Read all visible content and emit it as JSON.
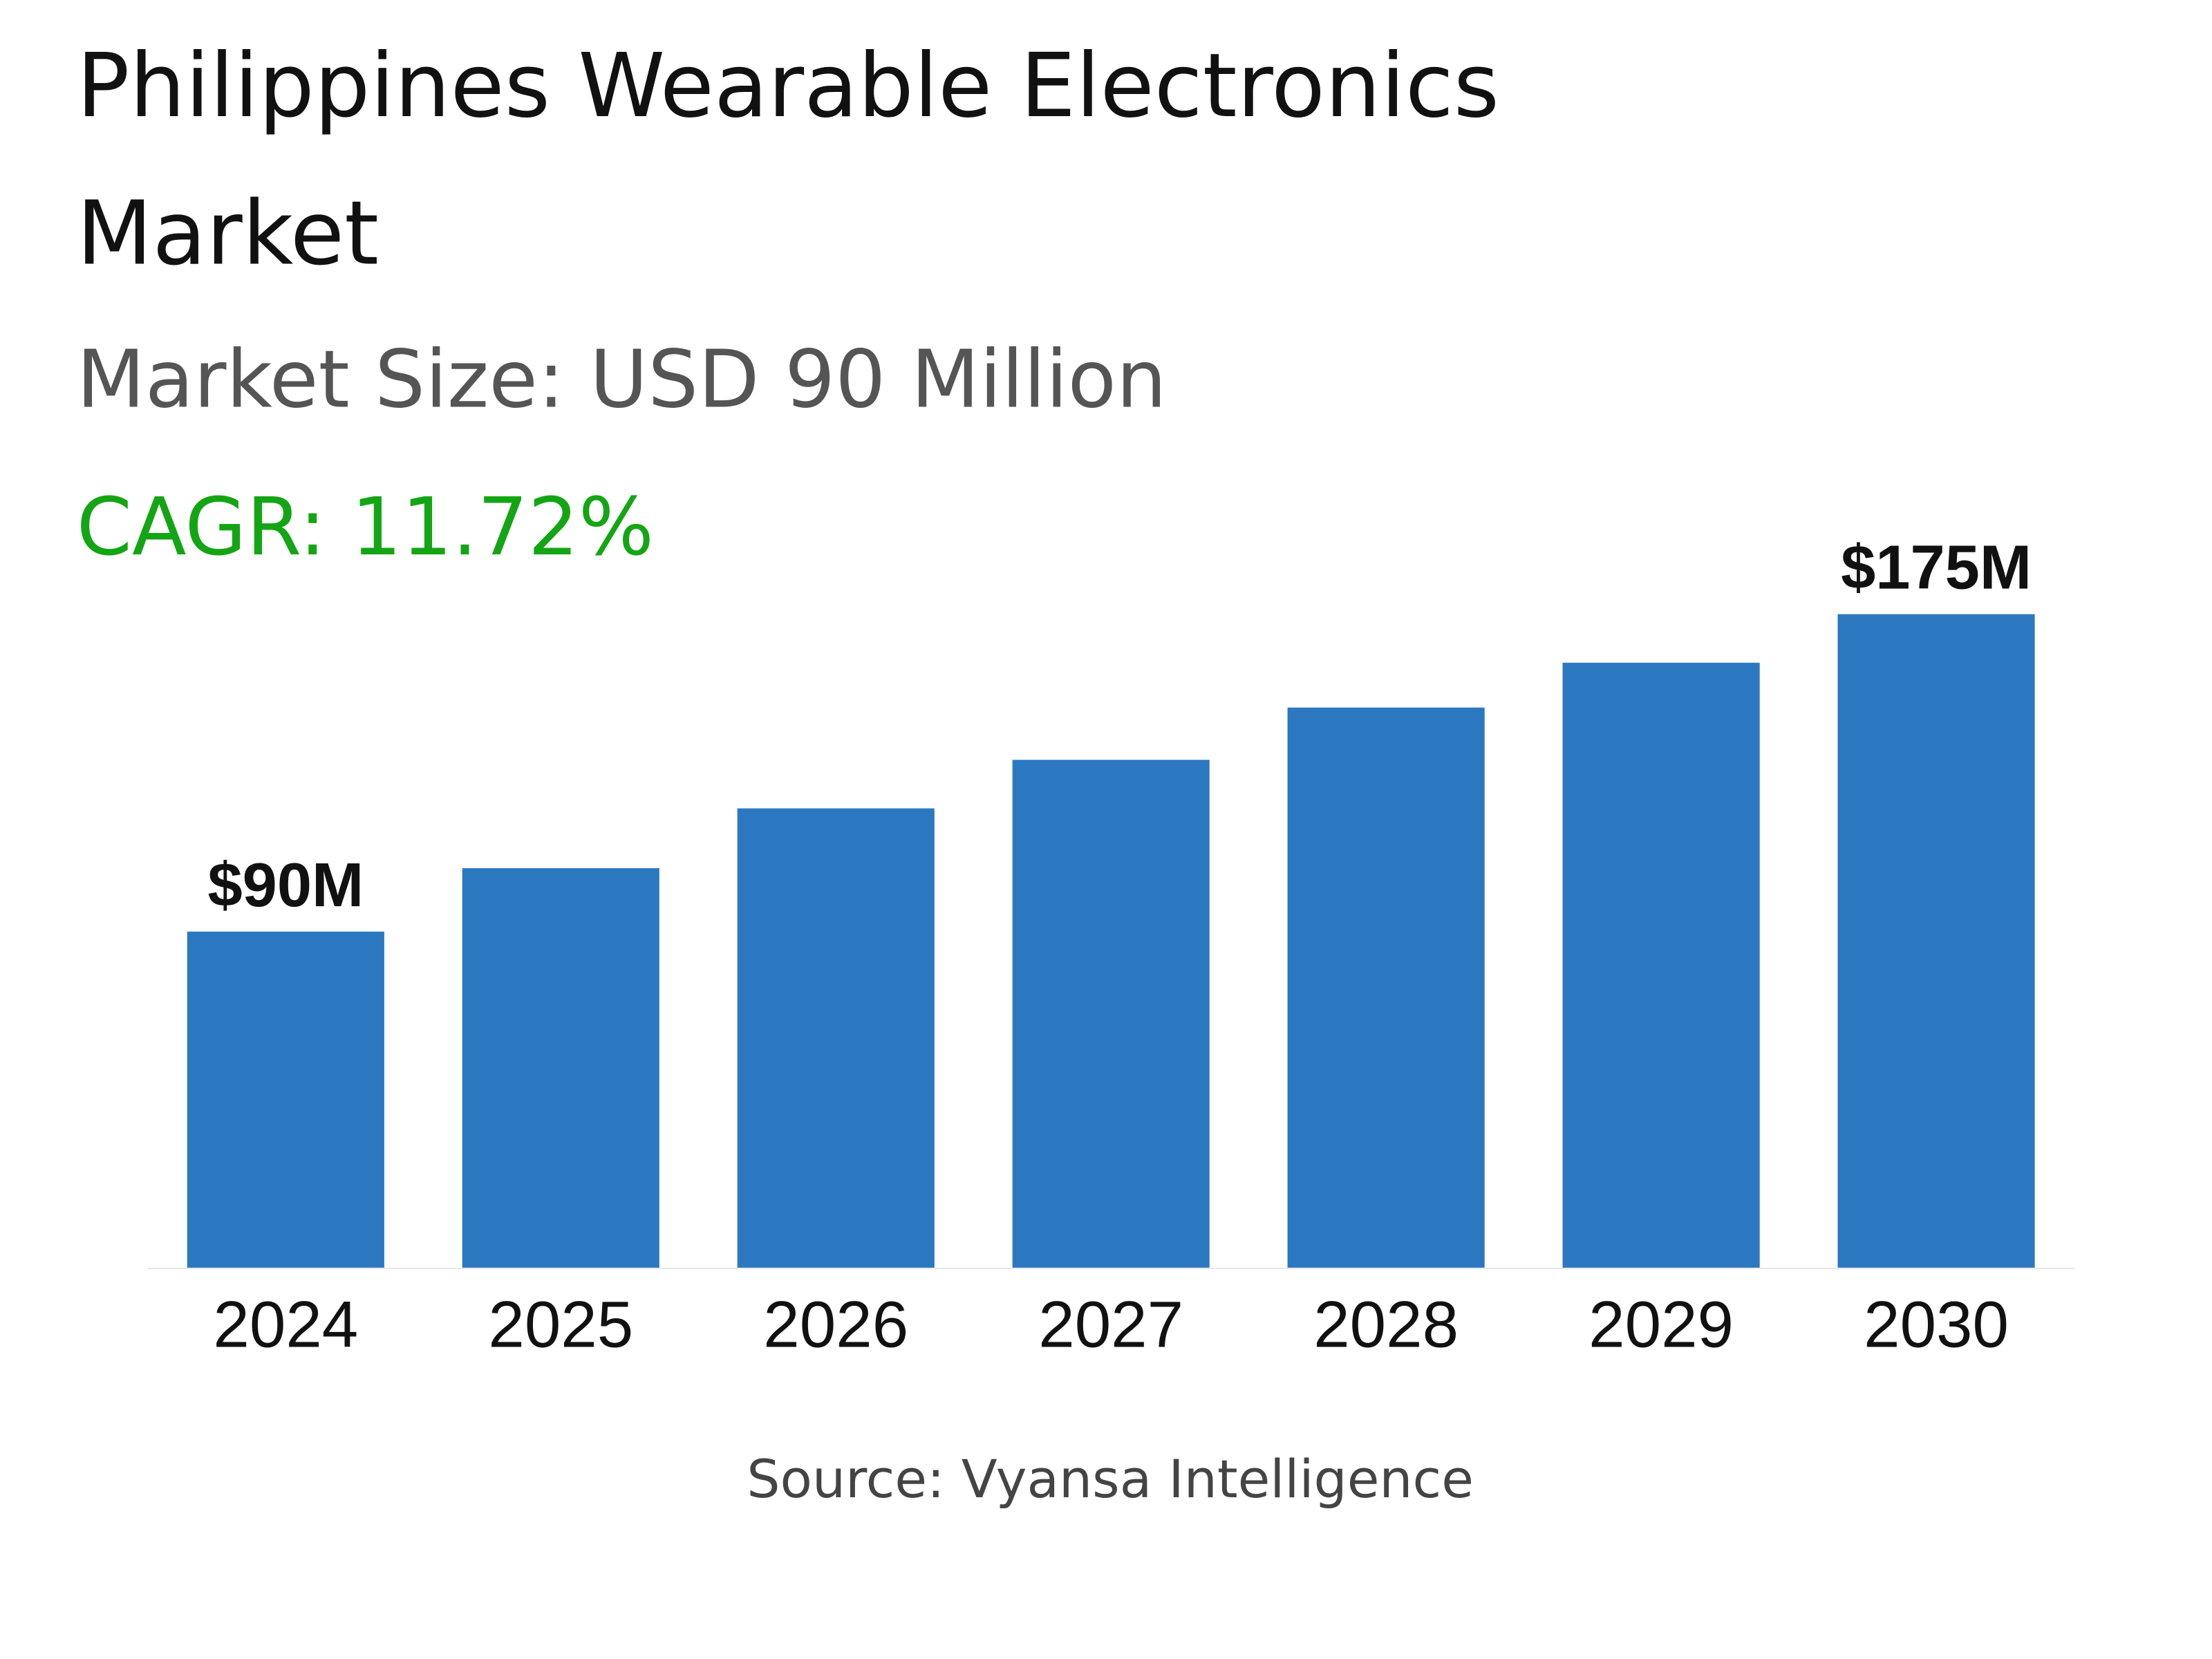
{
  "title_line1": "Philippines Wearable Electronics",
  "title_line2": "Market",
  "market_size": "Market Size: USD 90 Million",
  "cagr": "CAGR: 11.72%",
  "source": "Source: Vyansa Intelligence",
  "colors": {
    "bar": "#2b78c0",
    "cagr": "#14a514",
    "subtitle": "#555555"
  },
  "chart_data": {
    "type": "bar",
    "categories": [
      "2024",
      "2025",
      "2026",
      "2027",
      "2028",
      "2029",
      "2030"
    ],
    "values": [
      90,
      107,
      123,
      136,
      150,
      162,
      175
    ],
    "units": "USD Million",
    "data_labels": {
      "2024": "$90M",
      "2030": "$175M"
    },
    "grid": false,
    "ylim": [
      0,
      175
    ]
  }
}
